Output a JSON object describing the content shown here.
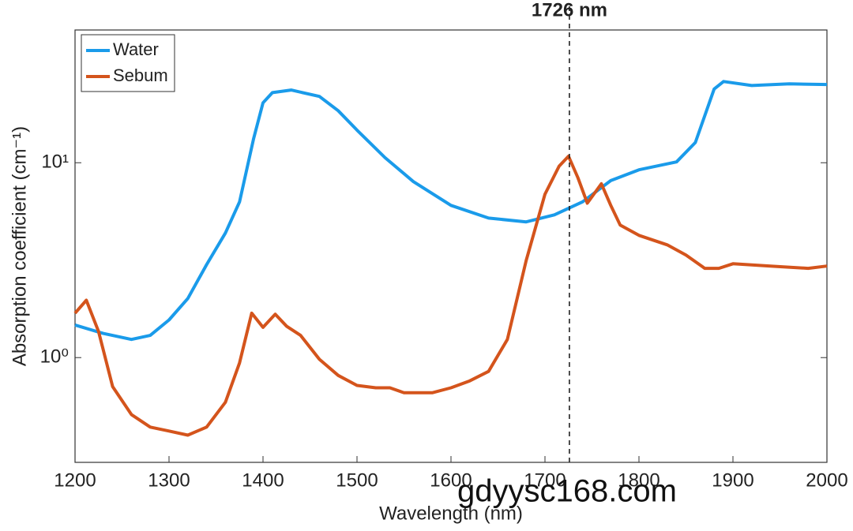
{
  "chart_data": {
    "type": "line",
    "xlabel": "Wavelength (nm)",
    "ylabel": "Absorption coefficient (cm⁻¹)",
    "xlim": [
      1200,
      2000
    ],
    "xticks": [
      1200,
      1300,
      1400,
      1500,
      1600,
      1700,
      1800,
      1900,
      2000
    ],
    "ylim": [
      0.29,
      48
    ],
    "yscale": "log",
    "yticks": [
      {
        "value": 1,
        "label": "10⁰"
      },
      {
        "value": 10,
        "label": "10¹"
      }
    ],
    "legend": "upper left",
    "vline": {
      "x": 1726,
      "label": "1726 nm"
    },
    "watermark": "gdyysc168.com",
    "series": [
      {
        "name": "Water",
        "color": "#1a9bea",
        "x": [
          1200,
          1230,
          1260,
          1280,
          1300,
          1320,
          1340,
          1360,
          1375,
          1390,
          1400,
          1410,
          1430,
          1460,
          1480,
          1500,
          1530,
          1560,
          1600,
          1640,
          1680,
          1710,
          1740,
          1770,
          1800,
          1840,
          1860,
          1880,
          1890,
          1920,
          1960,
          2000
        ],
        "values": [
          1.47,
          1.33,
          1.24,
          1.3,
          1.56,
          2.01,
          3.0,
          4.36,
          6.3,
          13.3,
          20.3,
          22.9,
          23.6,
          21.9,
          18.5,
          14.7,
          10.6,
          8.0,
          6.04,
          5.2,
          4.97,
          5.4,
          6.3,
          8.1,
          9.2,
          10.1,
          12.7,
          23.9,
          26.1,
          24.9,
          25.4,
          25.2
        ]
      },
      {
        "name": "Sebum",
        "color": "#d4541c",
        "x": [
          1200,
          1212,
          1225,
          1240,
          1260,
          1280,
          1300,
          1320,
          1340,
          1360,
          1375,
          1388,
          1400,
          1413,
          1425,
          1440,
          1460,
          1480,
          1500,
          1520,
          1535,
          1550,
          1580,
          1600,
          1620,
          1640,
          1660,
          1680,
          1700,
          1715,
          1725,
          1735,
          1745,
          1760,
          1770,
          1780,
          1800,
          1830,
          1850,
          1870,
          1885,
          1900,
          1940,
          1980,
          2000
        ],
        "values": [
          1.69,
          1.97,
          1.36,
          0.71,
          0.51,
          0.44,
          0.42,
          0.4,
          0.44,
          0.59,
          0.94,
          1.69,
          1.43,
          1.67,
          1.45,
          1.3,
          0.98,
          0.81,
          0.72,
          0.7,
          0.7,
          0.66,
          0.66,
          0.7,
          0.76,
          0.85,
          1.24,
          3.15,
          6.9,
          9.6,
          10.8,
          8.4,
          6.2,
          7.8,
          6.04,
          4.79,
          4.24,
          3.79,
          3.36,
          2.87,
          2.87,
          3.03,
          2.95,
          2.87,
          2.95
        ]
      }
    ]
  }
}
